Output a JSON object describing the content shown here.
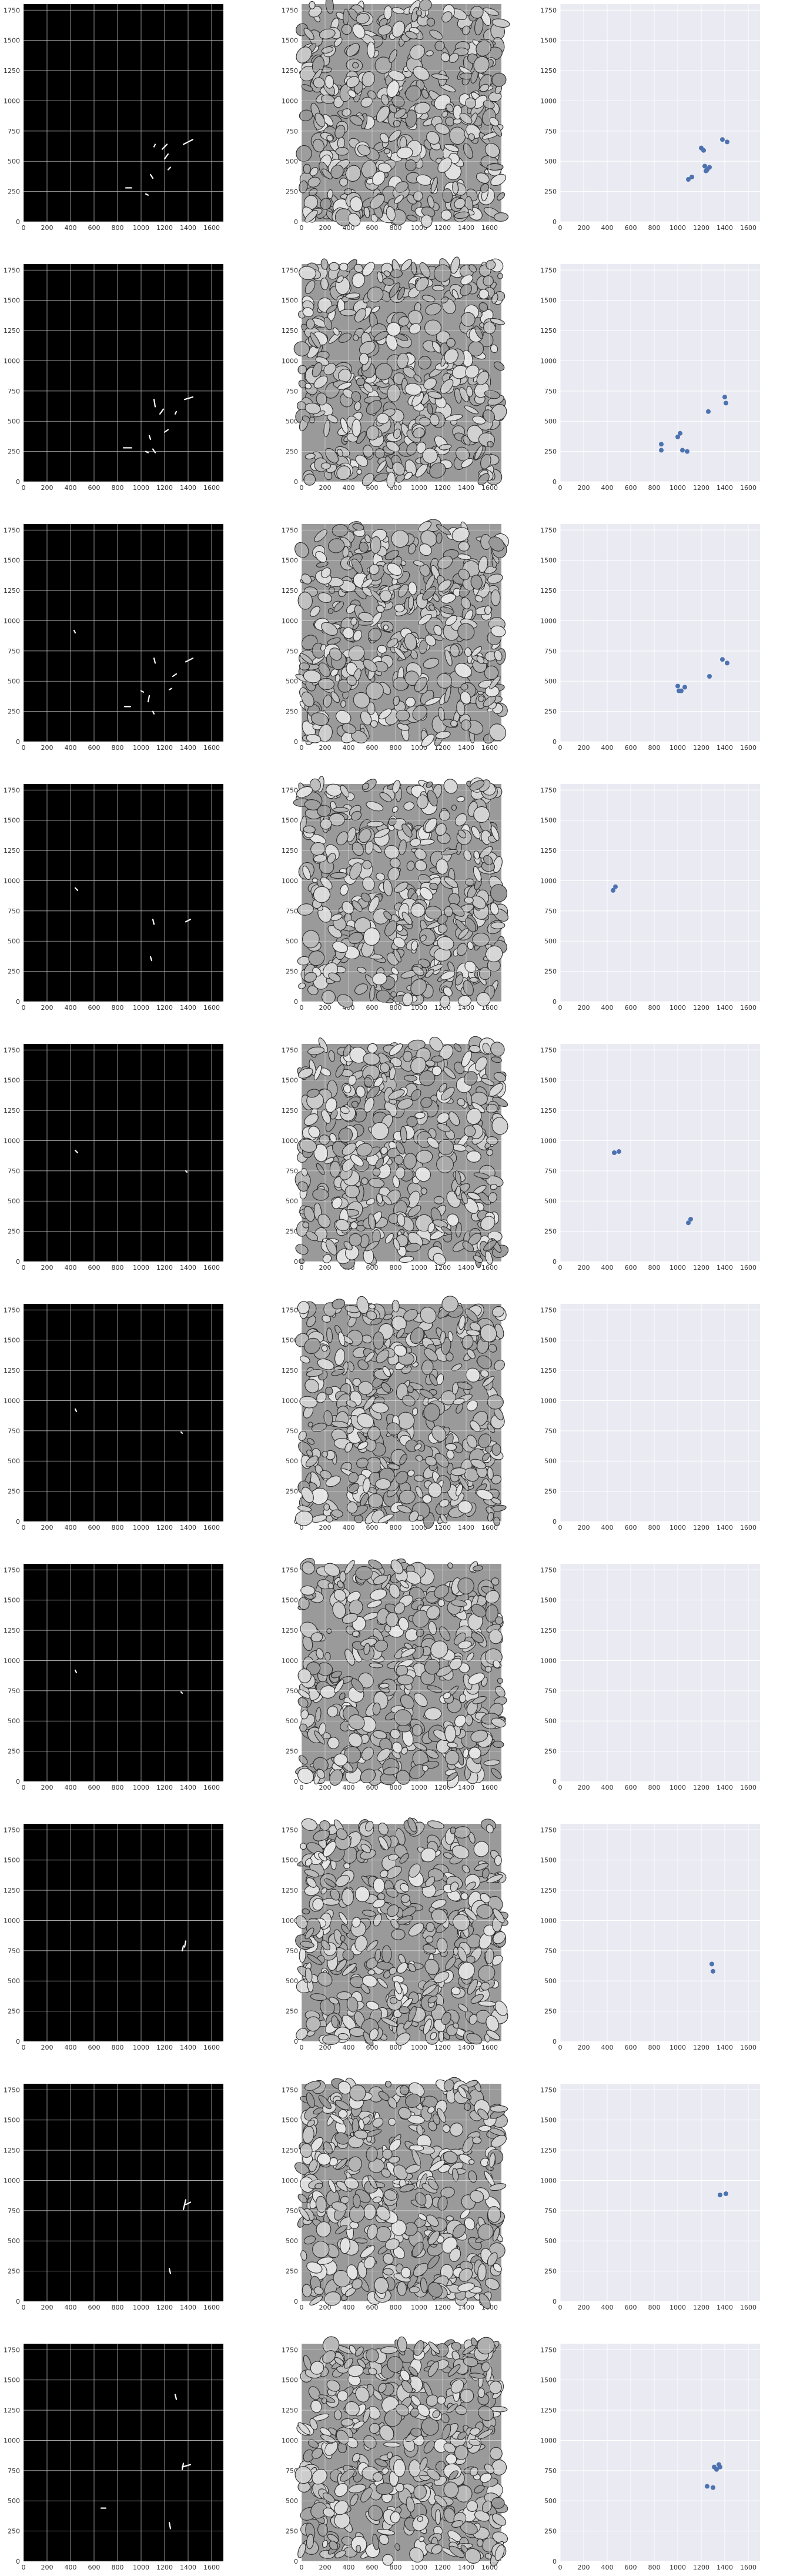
{
  "figure": {
    "axes_template": {
      "xlim": [
        0,
        1700
      ],
      "ylim": [
        0,
        1800
      ],
      "xticks": [
        0,
        200,
        400,
        600,
        800,
        1000,
        1200,
        1400,
        1600
      ],
      "yticks": [
        0,
        250,
        500,
        750,
        1000,
        1250,
        1500,
        1750
      ]
    },
    "colors": {
      "mask_background": "#000000",
      "mask_foreground": "#ffffff",
      "em_background": "#9a9a9a",
      "scatter_background": "#eaeaf2",
      "grid_light": "#ffffff",
      "point": "#4c72b0"
    }
  },
  "chart_data": [
    {
      "type": "heatmap",
      "row": 1,
      "description_source": "binary mask",
      "segments": [
        [
          1360,
          640,
          1440,
          680
        ],
        [
          1180,
          600,
          1220,
          640
        ],
        [
          1200,
          520,
          1230,
          560
        ],
        [
          1230,
          430,
          1250,
          450
        ],
        [
          1080,
          390,
          1100,
          360
        ],
        [
          870,
          280,
          920,
          280
        ],
        [
          1040,
          230,
          1060,
          220
        ],
        [
          1120,
          640,
          1110,
          620
        ]
      ]
    },
    {
      "type": "heatmap",
      "row": 1,
      "description_source": "microscopy image"
    },
    {
      "type": "scatter",
      "row": 1,
      "x": [
        1090,
        1120,
        1200,
        1220,
        1230,
        1250,
        1240,
        1270,
        1380,
        1420
      ],
      "y": [
        350,
        370,
        610,
        590,
        460,
        430,
        420,
        450,
        680,
        660
      ]
    },
    {
      "type": "heatmap",
      "row": 2,
      "description_source": "binary mask",
      "segments": [
        [
          1370,
          680,
          1440,
          700
        ],
        [
          1290,
          560,
          1300,
          580
        ],
        [
          1110,
          680,
          1120,
          620
        ],
        [
          1160,
          560,
          1190,
          600
        ],
        [
          1070,
          380,
          1080,
          350
        ],
        [
          1100,
          270,
          1120,
          240
        ],
        [
          850,
          280,
          920,
          280
        ],
        [
          1200,
          410,
          1230,
          430
        ],
        [
          1040,
          250,
          1060,
          240
        ]
      ]
    },
    {
      "type": "heatmap",
      "row": 2,
      "description_source": "microscopy image"
    },
    {
      "type": "scatter",
      "row": 2,
      "x": [
        860,
        860,
        1000,
        1020,
        1040,
        1080,
        1260,
        1400,
        1410
      ],
      "y": [
        310,
        260,
        370,
        400,
        260,
        250,
        580,
        700,
        650
      ]
    },
    {
      "type": "heatmap",
      "row": 3,
      "description_source": "binary mask",
      "segments": [
        [
          430,
          920,
          440,
          900
        ],
        [
          1380,
          660,
          1440,
          690
        ],
        [
          1110,
          690,
          1120,
          650
        ],
        [
          1270,
          540,
          1300,
          560
        ],
        [
          1000,
          420,
          1020,
          410
        ],
        [
          1070,
          380,
          1060,
          330
        ],
        [
          1100,
          250,
          1110,
          230
        ],
        [
          860,
          290,
          910,
          290
        ],
        [
          1240,
          430,
          1260,
          440
        ]
      ]
    },
    {
      "type": "heatmap",
      "row": 3,
      "description_source": "microscopy image"
    },
    {
      "type": "scatter",
      "row": 3,
      "x": [
        1000,
        1010,
        1030,
        1060,
        1270,
        1380,
        1420
      ],
      "y": [
        460,
        420,
        420,
        450,
        540,
        680,
        650
      ]
    },
    {
      "type": "heatmap",
      "row": 4,
      "description_source": "binary mask",
      "segments": [
        [
          440,
          940,
          460,
          920
        ],
        [
          1380,
          660,
          1420,
          680
        ],
        [
          1100,
          680,
          1110,
          640
        ],
        [
          1080,
          370,
          1090,
          340
        ]
      ]
    },
    {
      "type": "heatmap",
      "row": 4,
      "description_source": "microscopy image"
    },
    {
      "type": "scatter",
      "row": 4,
      "x": [
        450,
        470
      ],
      "y": [
        920,
        950
      ]
    },
    {
      "type": "heatmap",
      "row": 5,
      "description_source": "binary mask",
      "segments": [
        [
          440,
          920,
          460,
          900
        ],
        [
          1380,
          750,
          1390,
          740
        ]
      ]
    },
    {
      "type": "heatmap",
      "row": 5,
      "description_source": "microscopy image"
    },
    {
      "type": "scatter",
      "row": 5,
      "x": [
        460,
        500,
        1090,
        1110
      ],
      "y": [
        900,
        910,
        320,
        350
      ]
    },
    {
      "type": "heatmap",
      "row": 6,
      "description_source": "binary mask",
      "segments": [
        [
          440,
          930,
          450,
          910
        ],
        [
          1340,
          740,
          1350,
          730
        ]
      ]
    },
    {
      "type": "heatmap",
      "row": 6,
      "description_source": "microscopy image"
    },
    {
      "type": "scatter",
      "row": 6,
      "x": [],
      "y": []
    },
    {
      "type": "heatmap",
      "row": 7,
      "description_source": "binary mask",
      "segments": [
        [
          440,
          920,
          450,
          900
        ],
        [
          1340,
          740,
          1350,
          730
        ]
      ]
    },
    {
      "type": "heatmap",
      "row": 7,
      "description_source": "microscopy image"
    },
    {
      "type": "scatter",
      "row": 7,
      "x": [],
      "y": []
    },
    {
      "type": "heatmap",
      "row": 8,
      "description_source": "binary mask",
      "segments": [
        [
          1350,
          750,
          1360,
          790
        ],
        [
          1370,
          780,
          1380,
          830
        ]
      ]
    },
    {
      "type": "heatmap",
      "row": 8,
      "description_source": "microscopy image"
    },
    {
      "type": "scatter",
      "row": 8,
      "x": [
        1290,
        1300
      ],
      "y": [
        640,
        580
      ]
    },
    {
      "type": "heatmap",
      "row": 9,
      "description_source": "binary mask",
      "segments": [
        [
          1360,
          760,
          1380,
          840
        ],
        [
          1380,
          800,
          1420,
          820
        ],
        [
          1240,
          270,
          1250,
          230
        ]
      ]
    },
    {
      "type": "heatmap",
      "row": 9,
      "description_source": "microscopy image"
    },
    {
      "type": "scatter",
      "row": 9,
      "x": [
        1360,
        1410
      ],
      "y": [
        880,
        890
      ]
    },
    {
      "type": "heatmap",
      "row": 10,
      "description_source": "binary mask",
      "segments": [
        [
          1290,
          1380,
          1300,
          1340
        ],
        [
          1350,
          780,
          1420,
          800
        ],
        [
          1350,
          760,
          1360,
          810
        ],
        [
          660,
          440,
          700,
          440
        ],
        [
          1240,
          320,
          1250,
          270
        ]
      ]
    },
    {
      "type": "heatmap",
      "row": 10,
      "description_source": "microscopy image"
    },
    {
      "type": "scatter",
      "row": 10,
      "x": [
        1250,
        1300,
        1310,
        1330,
        1350,
        1360
      ],
      "y": [
        620,
        610,
        780,
        760,
        800,
        780
      ]
    }
  ]
}
